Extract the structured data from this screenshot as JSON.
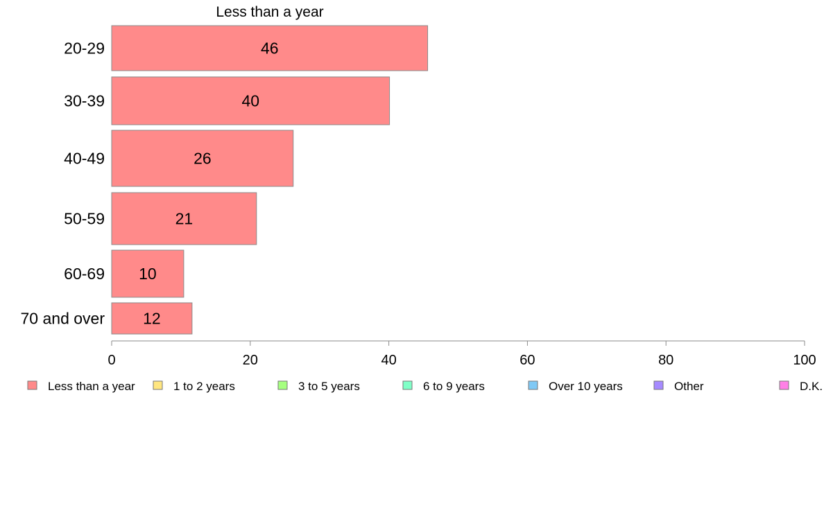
{
  "chart_data": {
    "type": "bar",
    "orientation": "horizontal",
    "title": "Less than a year",
    "categories": [
      "20-29",
      "30-39",
      "40-49",
      "50-59",
      "60-69",
      "70 and over"
    ],
    "series": [
      {
        "name": "Less than a year",
        "values": [
          45.6,
          40.1,
          26.2,
          20.9,
          10.4,
          11.6
        ],
        "labels": [
          "46",
          "40",
          "26",
          "21",
          "10",
          "12"
        ]
      }
    ],
    "xlim": [
      0,
      100
    ],
    "xticks": [
      "0",
      "20",
      "40",
      "60",
      "80",
      "100"
    ],
    "grid": false,
    "legend_position": "bottom",
    "legend": [
      {
        "label": "Less than a year",
        "color": "#ff8a8a"
      },
      {
        "label": "1 to 2 years",
        "color": "#ffe680"
      },
      {
        "label": "3 to 5 years",
        "color": "#a6ff80"
      },
      {
        "label": "6 to 9 years",
        "color": "#80ffc7"
      },
      {
        "label": "Over 10 years",
        "color": "#80c9f5"
      },
      {
        "label": "Other",
        "color": "#a68aff"
      },
      {
        "label": "D.K.",
        "color": "#ff80e6"
      }
    ]
  }
}
